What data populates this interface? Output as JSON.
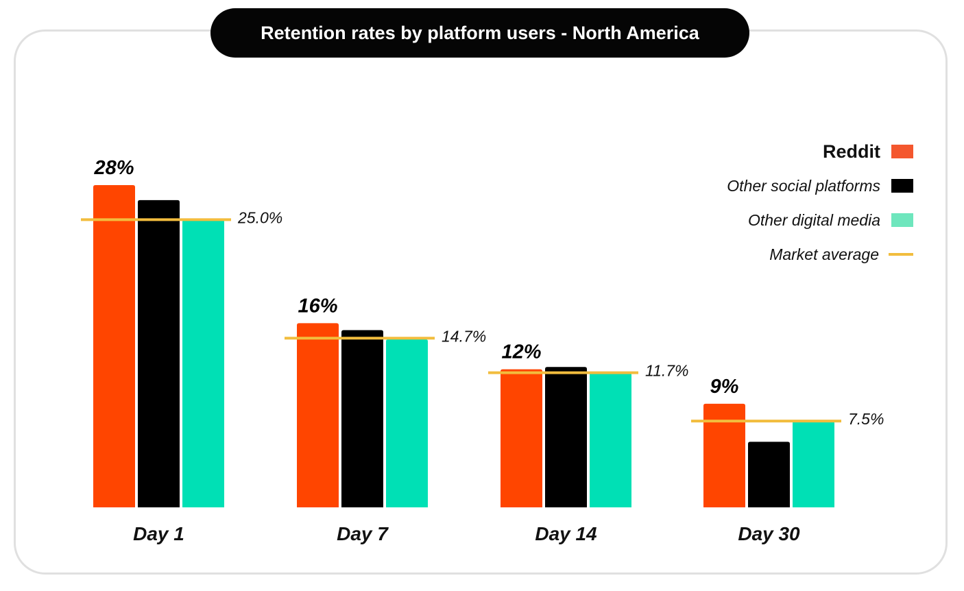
{
  "title": "Retention rates by platform users - North America",
  "colors": {
    "reddit": "#ff4500",
    "social": "#000000",
    "digital": "#00e0b5",
    "market": "#f2bd3e",
    "legend_reddit": "#f4572e",
    "legend_digital": "#6ee6bd"
  },
  "legend": [
    {
      "label": "Reddit",
      "color": "#f4572e",
      "kind": "box"
    },
    {
      "label": "Other social platforms",
      "color": "#000000",
      "kind": "box"
    },
    {
      "label": "Other digital media",
      "color": "#6ee6bd",
      "kind": "box"
    },
    {
      "label": "Market average",
      "color": "#f2bd3e",
      "kind": "line"
    }
  ],
  "chart_data": {
    "type": "bar",
    "title": "Retention rates by platform users - North America",
    "categories": [
      "Day 1",
      "Day 7",
      "Day 14",
      "Day 30"
    ],
    "series": [
      {
        "name": "Reddit",
        "values": [
          28,
          16,
          12,
          9
        ],
        "value_labels": [
          "28%",
          "16%",
          "12%",
          "9%"
        ]
      },
      {
        "name": "Other social platforms",
        "values": [
          26.7,
          15.4,
          12.2,
          5.7
        ]
      },
      {
        "name": "Other digital media",
        "values": [
          25.0,
          14.6,
          11.7,
          7.5
        ]
      }
    ],
    "market_average": {
      "name": "Market average",
      "values": [
        25.0,
        14.7,
        11.7,
        7.5
      ],
      "labels": [
        "25.0%",
        "14.7%",
        "11.7%",
        "7.5%"
      ]
    },
    "ylim": [
      0,
      28
    ],
    "grid": false,
    "legend_position": "top-right"
  }
}
